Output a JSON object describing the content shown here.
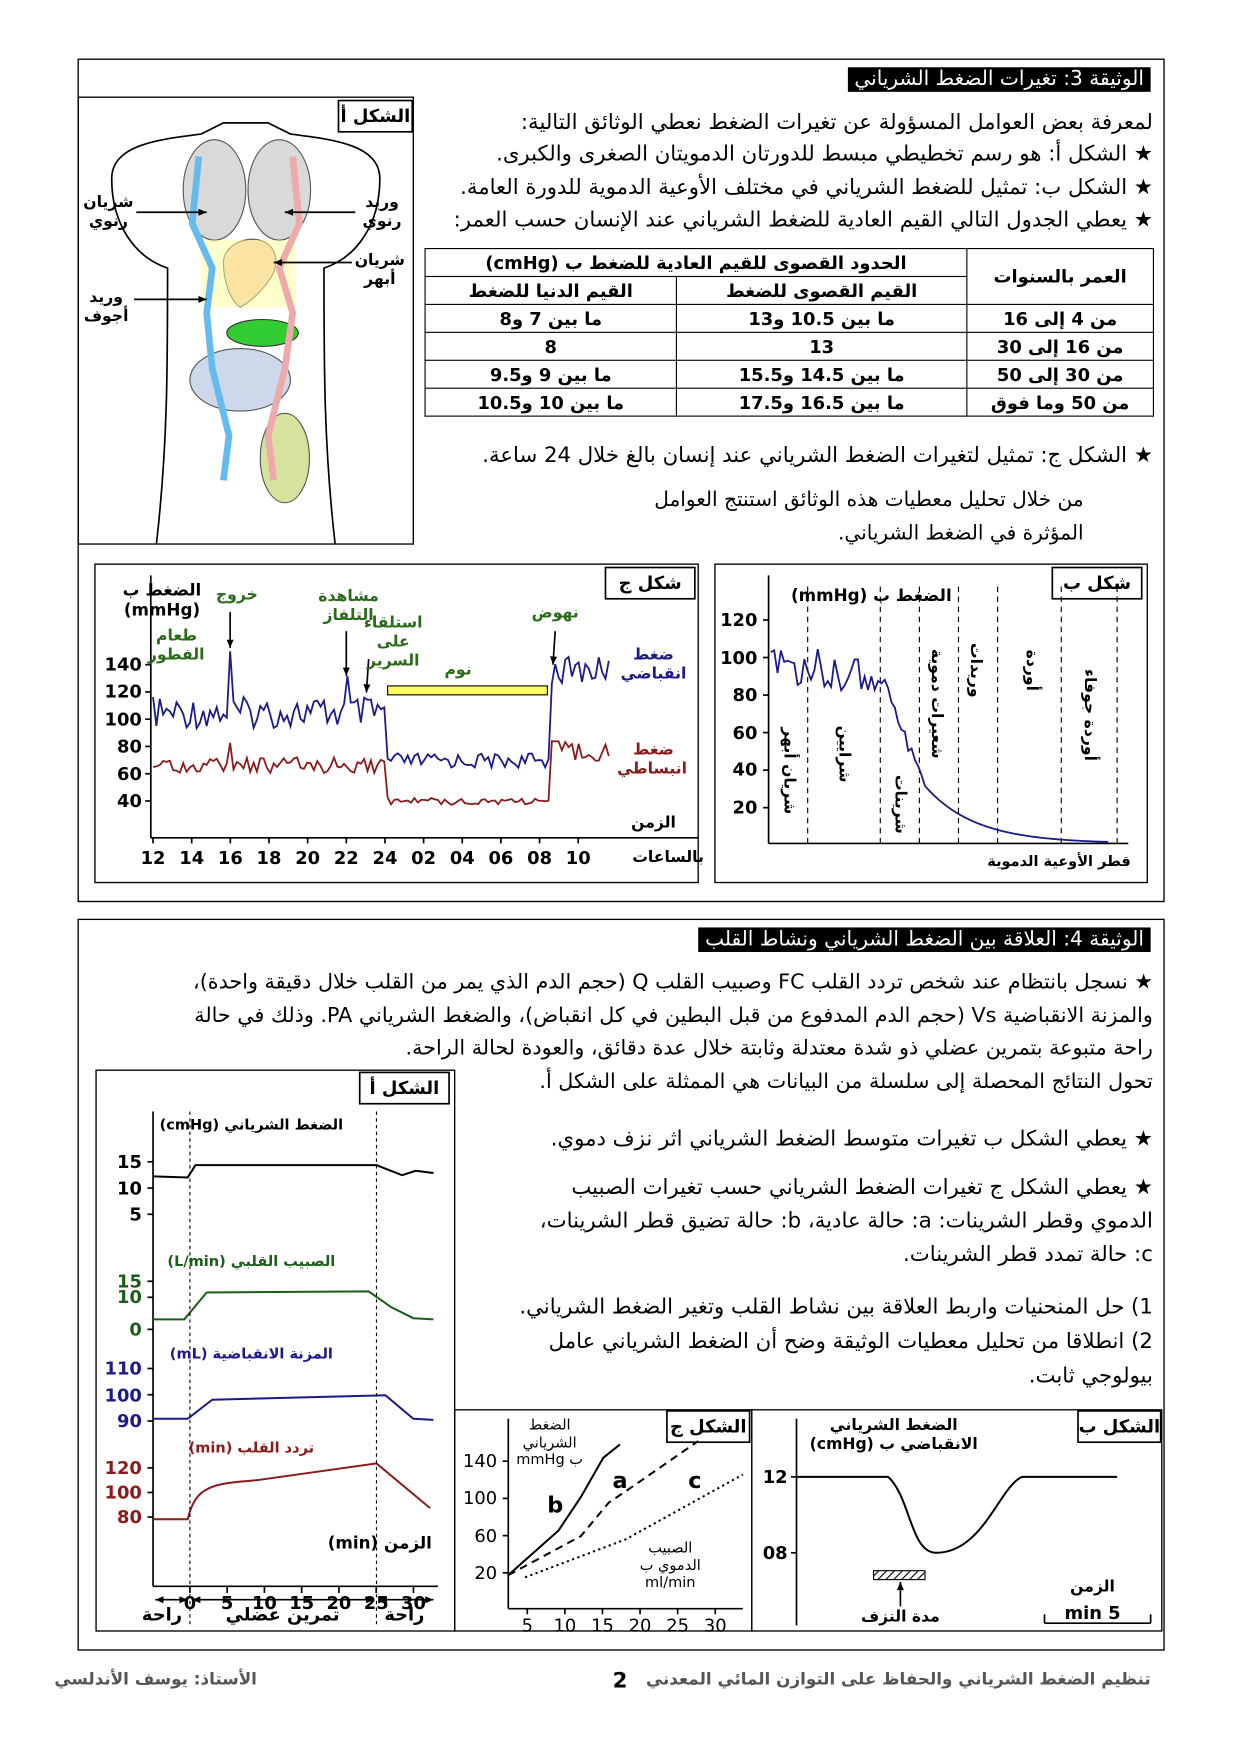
{
  "doc3": {
    "title": "الوثيقة 3: تغيرات الضغط الشرياني",
    "intro": "لمعرفة بعض العوامل المسؤولة عن تغيرات الضغط نعطي الوثائق التالية:",
    "bullets": [
      "★ الشكل أ: هو رسم تخطيطي مبسط للدورتان الدمويتان الصغرى والكبرى.",
      "★ الشكل ب: تمثيل للضغط الشرياني في مختلف الأوعية الدموية للدورة العامة.",
      "★ يعطي الجدول التالي القيم العادية للضغط الشرياني عند الإنسان حسب العمر:"
    ],
    "table": {
      "age_header": "العمر بالسنوات",
      "limits_header": "الحدود القصوى للقيم العادية للضغط ب (cmHg)",
      "max_header": "القيم القصوى للضغط",
      "min_header": "القيم الدنيا للضغط",
      "rows": [
        [
          "من 4 إلى 16",
          "ما بين 10.5 و13",
          "ما بين 7 و8"
        ],
        [
          "من 16 إلى 30",
          13,
          8
        ],
        [
          "من 30 إلى 50",
          "ما بين 14.5 و15.5",
          "ما بين 9 و9.5"
        ],
        [
          "من 50 وما فوق",
          "ما بين 16.5 و17.5",
          "ما بين 10 و10.5"
        ]
      ]
    },
    "bullet_c": "★ الشكل ج: تمثيل لتغيرات الضغط الشرياني عند إنسان بالغ خلال 24 ساعة.",
    "conclusion": "من خلال تحليل معطيات هذه الوثائق استنتج العوامل المؤثرة في الضغط الشرياني.",
    "figure_a": {
      "label": "الشكل أ",
      "labels": [
        "شريان رنوي",
        "وريد رنوي",
        "شريان أبهر",
        "وريد أجوف"
      ]
    },
    "figure_b": {
      "label": "شكل ب",
      "y_label": "الضغط ب (mmHg)",
      "yticks": [
        120,
        100,
        80,
        60,
        40,
        20
      ],
      "regions": [
        "شريان أبهر",
        "شرايين",
        "شرينات",
        "شعيرات دموية",
        "وريدات",
        "أوردة",
        "أوردة جوفاء"
      ],
      "x_label": "قطر الأوعية الدموية"
    },
    "figure_c": {
      "label": "شكل ج",
      "y_label": "الضغط ب (mmHg)",
      "yticks": [
        140,
        120,
        100,
        80,
        60,
        40
      ],
      "xticks": [
        "12",
        "14",
        "16",
        "18",
        "20",
        "22",
        "24",
        "02",
        "04",
        "06",
        "08",
        "10"
      ],
      "x_unit": "بالساعات",
      "x_label": "الزمن",
      "events": [
        "طعام الفطور",
        "خروج",
        "مشاهدة التلفاز",
        "استلقاء على السرير",
        "نوم",
        "نهوض"
      ],
      "series": [
        "ضغط انقباضي",
        "ضغط انبساطي"
      ]
    }
  },
  "doc4": {
    "title": "الوثيقة 4: العلاقة بين الضغط الشرياني ونشاط القلب",
    "paragraph": [
      "★ نسجل بانتظام عند شخص تردد القلب FC وصبيب القلب Q (حجم الدم الذي يمر من القلب خلال دقيقة واحدة)،",
      "والمزنة الانقباضية Vs (حجم الدم المدفوع من قبل البطين في كل انقباض)، والضغط الشرياني PA. وذلك في حالة",
      "راحة متبوعة بتمرين عضلي ذو شدة معتدلة وثابتة خلال عدة دقائق، والعودة لحالة الراحة.",
      "تحول النتائج المحصلة إلى سلسلة من البيانات هي الممثلة على الشكل أ."
    ],
    "bullet_b": "★ يعطي الشكل ب تغيرات متوسط الضغط الشرياني اثر نزف دموي.",
    "bullet_c": [
      "★ يعطي الشكل ج تغيرات الضغط الشرياني حسب تغيرات الصبيب",
      "الدموي وقطر الشرينات: a: حالة عادية، b: حالة تضيق قطر الشرينات،",
      "c: حالة تمدد قطر الشرينات."
    ],
    "questions": [
      "1) حل المنحنيات واربط العلاقة بين نشاط القلب وتغير الضغط الشرياني.",
      "2) انطلاقا من تحليل معطيات الوثيقة وضح أن الضغط الشرياني عامل",
      "بيولوجي ثابت."
    ],
    "figure_a": {
      "label": "الشكل أ",
      "panels": [
        {
          "label": "الضغط الشرياني (cmHg)",
          "ticks": [
            15,
            10,
            5
          ]
        },
        {
          "label": "الصبيب القلبي (L/min)",
          "ticks": [
            15,
            10,
            0
          ]
        },
        {
          "label": "المزنة الانقباضية (mL)",
          "ticks": [
            110,
            100,
            90
          ]
        },
        {
          "label": "تردد القلب (min)",
          "ticks": [
            120,
            100,
            80
          ]
        }
      ],
      "x_label": "الزمن (min)",
      "xticks": [
        0,
        5,
        10,
        15,
        20,
        25,
        30
      ],
      "phases": [
        "راحة",
        "تمرين عضلي",
        "راحة"
      ]
    },
    "figure_b": {
      "label": "الشكل ب",
      "y_label": "الضغط الشرياني الانقباضي ب (cmHg)",
      "yticks": [
        12,
        {
          "value": 8,
          "label": "08"
        }
      ],
      "x_label": "الزمن",
      "bleed": "مدة النزف",
      "scale": "5 min"
    },
    "figure_c": {
      "label": "الشكل ج",
      "y_label": "الضغط الشرياني ب mmHg",
      "yticks": [
        140,
        100,
        60,
        20
      ],
      "x_label": "الصبيب الدموي ب ml/min",
      "xticks": [
        5,
        10,
        15,
        20,
        25,
        30
      ],
      "curves": [
        "a",
        "b",
        "c"
      ]
    }
  },
  "footer": {
    "course": "تنظيم الضغط الشرياني والحفاظ على التوازن المائي المعدني",
    "page": 2,
    "author": "الأستاذ: يوسف الأندلسي"
  }
}
